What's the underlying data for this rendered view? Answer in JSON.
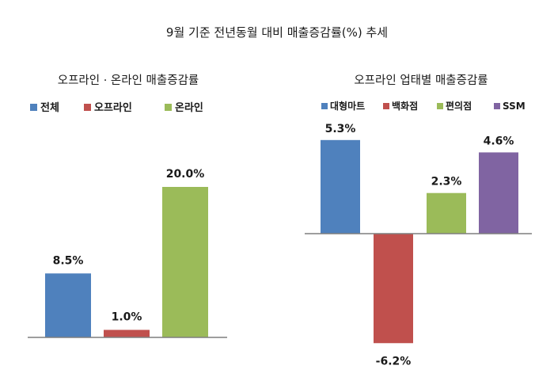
{
  "title": "9월 기준 전년동월 대비 매출증감률(%) 추세",
  "chart_data": [
    {
      "type": "bar",
      "title": "오프라인 · 온라인 매출증감률",
      "legend_position": "top",
      "categories": [
        "전체",
        "오프라인",
        "온라인"
      ],
      "values": [
        8.5,
        1.0,
        20.0
      ],
      "labels": [
        "8.5%",
        "1.0%",
        "20.0%"
      ],
      "colors": [
        "#4f81bd",
        "#c0504d",
        "#9bbb59"
      ],
      "ylim": [
        0,
        22
      ],
      "grid": false
    },
    {
      "type": "bar",
      "title": "오프라인 업태별 매출증감률",
      "legend_position": "top",
      "categories": [
        "대형마트",
        "백화점",
        "편의점",
        "SSM"
      ],
      "values": [
        5.3,
        -6.2,
        2.3,
        4.6
      ],
      "labels": [
        "5.3%",
        "-6.2%",
        "2.3%",
        "4.6%"
      ],
      "colors": [
        "#4f81bd",
        "#c0504d",
        "#9bbb59",
        "#8064a2"
      ],
      "ylim": [
        -6.5,
        6.0
      ],
      "grid": false
    }
  ]
}
